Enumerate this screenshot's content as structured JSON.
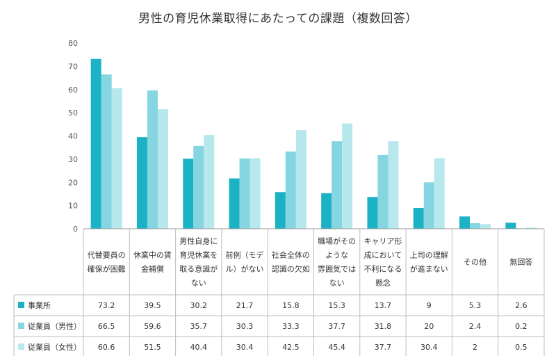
{
  "chart_data": {
    "type": "bar",
    "title": "男性の育児休業取得にあたっての課題（複数回答）",
    "ylim": [
      0,
      80
    ],
    "yticks": [
      "0",
      "10",
      "20",
      "30",
      "40",
      "50",
      "60",
      "70",
      "80"
    ],
    "categories": [
      [
        "代替要員の",
        "確保が困難"
      ],
      [
        "休業中の賃",
        "金補償"
      ],
      [
        "男性自身に",
        "育児休業を",
        "取る意識が",
        "ない"
      ],
      [
        "前例（モデ",
        "ル）がない"
      ],
      [
        "社会全体の",
        "認識の欠如"
      ],
      [
        "職場がその",
        "ような",
        "雰囲気では",
        "ない"
      ],
      [
        "キャリア形",
        "成において",
        "不利になる",
        "懸念"
      ],
      [
        "上司の理解",
        "が進まない"
      ],
      [
        "その他"
      ],
      [
        "無回答"
      ]
    ],
    "series": [
      {
        "name": "事業所",
        "color": "#1cb2c5",
        "values": [
          73.2,
          39.5,
          30.2,
          21.7,
          15.8,
          15.3,
          13.7,
          9,
          5.3,
          2.6
        ],
        "labels": [
          "73.2",
          "39.5",
          "30.2",
          "21.7",
          "15.8",
          "15.3",
          "13.7",
          "9",
          "5.3",
          "2.6"
        ]
      },
      {
        "name": "従業員（男性）",
        "color": "#85d6e0",
        "values": [
          66.5,
          59.6,
          35.7,
          30.3,
          33.3,
          37.7,
          31.8,
          20,
          2.4,
          0.2
        ],
        "labels": [
          "66.5",
          "59.6",
          "35.7",
          "30.3",
          "33.3",
          "37.7",
          "31.8",
          "20",
          "2.4",
          "0.2"
        ]
      },
      {
        "name": "従業員（女性）",
        "color": "#b6e8ee",
        "values": [
          60.6,
          51.5,
          40.4,
          30.4,
          42.5,
          45.4,
          37.7,
          30.4,
          2,
          0.5
        ],
        "labels": [
          "60.6",
          "51.5",
          "40.4",
          "30.4",
          "42.5",
          "45.4",
          "37.7",
          "30.4",
          "2",
          "0.5"
        ]
      }
    ]
  }
}
